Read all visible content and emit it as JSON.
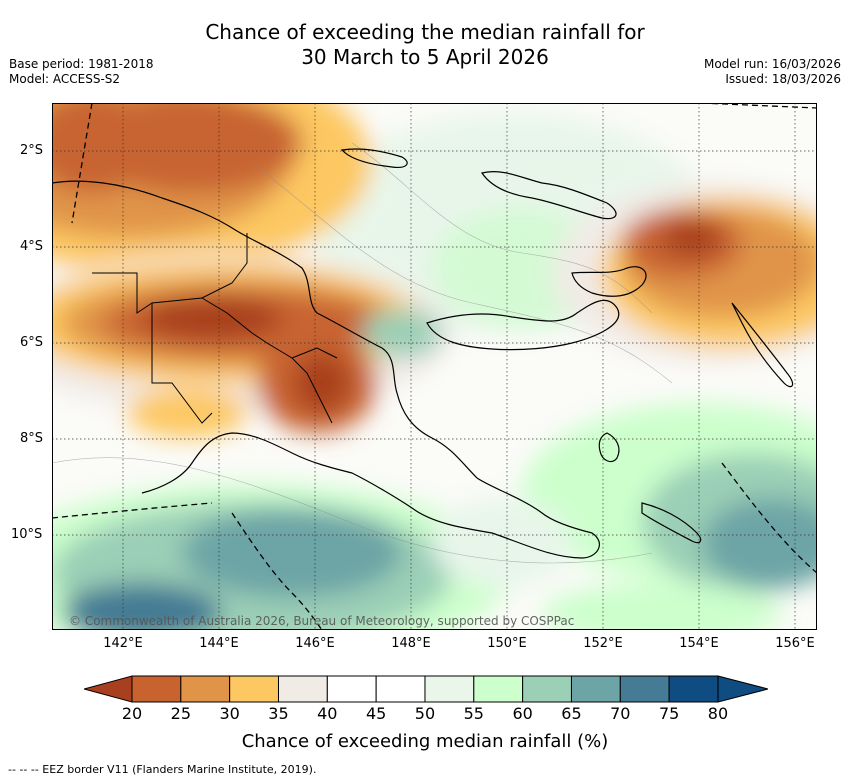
{
  "header": {
    "title_line1": "Chance of exceeding the median rainfall for",
    "title_line2": "30 March to 5 April 2026",
    "base_period": "Base period: 1981-2018",
    "model": "Model: ACCESS-S2",
    "model_run": "Model run: 16/03/2026",
    "issued": "Issued: 18/03/2026"
  },
  "map": {
    "lat_labels": [
      "2°S",
      "4°S",
      "6°S",
      "8°S",
      "10°S"
    ],
    "lon_labels": [
      "142°E",
      "144°E",
      "146°E",
      "148°E",
      "150°E",
      "152°E",
      "154°E",
      "156°E"
    ],
    "copyright": "© Commonwealth of Australia 2026, Bureau of Meteorology, supported by COSPPac",
    "region": "Papua New Guinea"
  },
  "colorbar": {
    "ticks": [
      "20",
      "25",
      "30",
      "35",
      "40",
      "45",
      "50",
      "55",
      "60",
      "65",
      "70",
      "75",
      "80"
    ],
    "colors": [
      "#a8401f",
      "#c86330",
      "#e09448",
      "#fdc862",
      "#f1ebe6",
      "#ffffff",
      "#ffffff",
      "#eaf6ea",
      "#ccffcc",
      "#9bcfb6",
      "#6da4a6",
      "#457b94",
      "#0f4c81"
    ],
    "title": "Chance of exceeding median rainfall (%)"
  },
  "footer": {
    "eez_note": "--  --  -- EEZ border V11 (Flanders Marine Institute, 2019)."
  }
}
